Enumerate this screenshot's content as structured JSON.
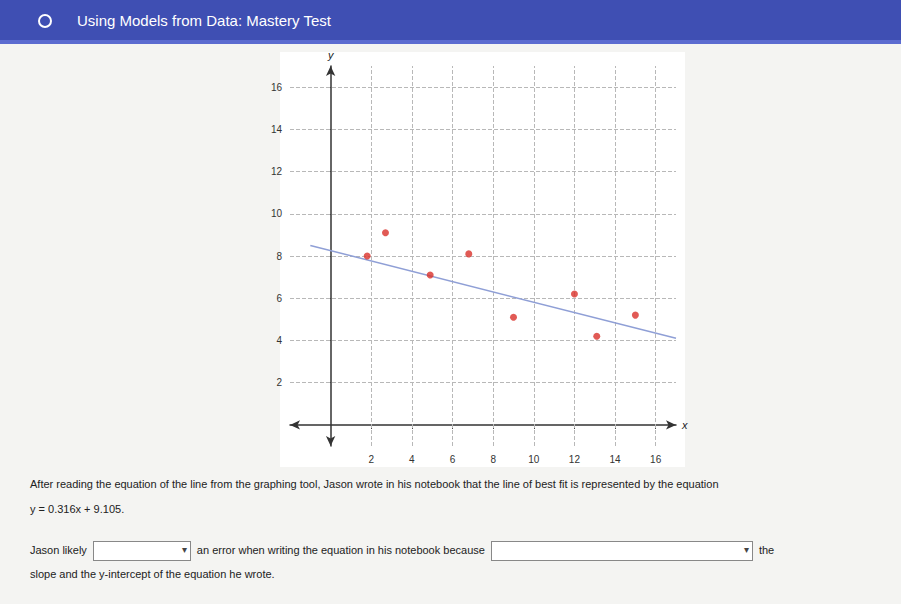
{
  "header": {
    "title": "Using Models from Data: Mastery Test"
  },
  "chart_data": {
    "type": "scatter",
    "x_label": "x",
    "y_label": "y",
    "xlim": [
      -2,
      17
    ],
    "ylim": [
      -1,
      17
    ],
    "xticks": [
      2,
      4,
      6,
      8,
      10,
      12,
      14,
      16
    ],
    "yticks": [
      2,
      4,
      6,
      8,
      10,
      12,
      14,
      16
    ],
    "grid": true,
    "series": [
      {
        "type": "scatter",
        "color": "#d9312b",
        "marker": "circle",
        "x": [
          1.8,
          2.7,
          4.9,
          6.8,
          9,
          12,
          13.1,
          15
        ],
        "values": [
          8,
          9.1,
          7.1,
          8.1,
          5.1,
          6.2,
          4.2,
          5.2
        ]
      },
      {
        "type": "line",
        "color": "#8f9fd6",
        "line_style": "solid",
        "x": [
          -1,
          17
        ],
        "values": [
          8.5,
          4.1
        ]
      }
    ]
  },
  "question": {
    "intro": "After reading the equation of the line from the graphing tool, Jason wrote in his notebook that the line of best fit is represented by the equation",
    "equation": "y = 0.316x + 9.105.",
    "part1": "Jason likely",
    "part2": "an error when writing the equation in his notebook because",
    "part3": "the",
    "part4": "slope and the y-intercept of the equation he wrote."
  }
}
